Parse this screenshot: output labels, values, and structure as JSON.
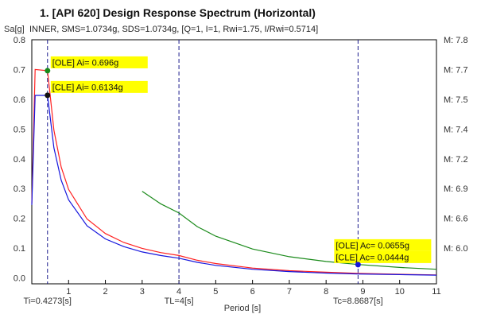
{
  "chart_data": {
    "type": "line",
    "title": "1. [API 620] Design Response Spectrum (Horizontal)",
    "subtitle": "INNER, SMS=1.0734g, SDS=1.0734g, [Q=1, I=1, Rwi=1.75, I/Rwi=0.5714]",
    "ylabel": "Sa[g]",
    "xlabel": "Period [s]",
    "xlim": [
      0.0,
      11.0
    ],
    "ylim": [
      -0.02,
      0.8
    ],
    "x_ticks": [
      1,
      2,
      3,
      4,
      5,
      6,
      7,
      8,
      9,
      10,
      11
    ],
    "y_ticks": [
      0.0,
      0.1,
      0.2,
      0.3,
      0.4,
      0.5,
      0.6,
      0.7,
      0.8
    ],
    "right_axis_labels": [
      {
        "y": 0.8,
        "label": "M: 7.8"
      },
      {
        "y": 0.7,
        "label": "M: 7.7"
      },
      {
        "y": 0.6,
        "label": "M: 7.5"
      },
      {
        "y": 0.5,
        "label": "M: 7.4"
      },
      {
        "y": 0.4,
        "label": "M: 7.2"
      },
      {
        "y": 0.3,
        "label": "M: 6.9"
      },
      {
        "y": 0.2,
        "label": "M: 6.6"
      },
      {
        "y": 0.1,
        "label": "M: 6.0"
      }
    ],
    "series": [
      {
        "color": "#ff2020",
        "points": [
          [
            0.0,
            0.25
          ],
          [
            0.09,
            0.7
          ],
          [
            0.4273,
            0.696
          ],
          [
            0.6,
            0.496
          ],
          [
            0.8,
            0.372
          ],
          [
            1.0,
            0.297
          ],
          [
            1.5,
            0.198
          ],
          [
            2.0,
            0.149
          ],
          [
            2.5,
            0.119
          ],
          [
            3.0,
            0.099
          ],
          [
            3.5,
            0.085
          ],
          [
            4.0,
            0.075
          ],
          [
            4.5,
            0.059
          ],
          [
            5.0,
            0.048
          ],
          [
            6.0,
            0.033
          ],
          [
            7.0,
            0.024
          ],
          [
            8.0,
            0.019
          ],
          [
            8.87,
            0.015
          ],
          [
            10.0,
            0.012
          ],
          [
            11.0,
            0.01
          ]
        ]
      },
      {
        "color": "#1515dd",
        "points": [
          [
            0.0,
            0.245
          ],
          [
            0.09,
            0.613
          ],
          [
            0.4273,
            0.613
          ],
          [
            0.6,
            0.437
          ],
          [
            0.8,
            0.328
          ],
          [
            1.0,
            0.262
          ],
          [
            1.5,
            0.175
          ],
          [
            2.0,
            0.131
          ],
          [
            2.5,
            0.105
          ],
          [
            3.0,
            0.087
          ],
          [
            3.5,
            0.075
          ],
          [
            4.0,
            0.066
          ],
          [
            4.5,
            0.052
          ],
          [
            5.0,
            0.042
          ],
          [
            6.0,
            0.029
          ],
          [
            7.0,
            0.021
          ],
          [
            8.0,
            0.016
          ],
          [
            8.87,
            0.013
          ],
          [
            10.0,
            0.011
          ],
          [
            11.0,
            0.009
          ]
        ]
      },
      {
        "color": "#1a8a1a",
        "points": [
          [
            3.0,
            0.291
          ],
          [
            3.5,
            0.249
          ],
          [
            4.0,
            0.218
          ],
          [
            4.5,
            0.172
          ],
          [
            5.0,
            0.14
          ],
          [
            6.0,
            0.097
          ],
          [
            7.0,
            0.071
          ],
          [
            8.0,
            0.055
          ],
          [
            8.87,
            0.045
          ],
          [
            10.0,
            0.035
          ],
          [
            11.0,
            0.029
          ]
        ]
      }
    ],
    "vlines": [
      {
        "x": 0.4273,
        "label": "Ti=0.4273[s]"
      },
      {
        "x": 4.0,
        "label": "TL=4[s]"
      },
      {
        "x": 8.8687,
        "label": "Tc=8.8687[s]"
      }
    ],
    "markers": [
      {
        "x": 0.4273,
        "y": 0.696,
        "color": "#1a8a1a"
      },
      {
        "x": 0.4273,
        "y": 0.6134,
        "color": "#111111"
      },
      {
        "x": 8.8687,
        "y": 0.0444,
        "color": "#1515dd"
      }
    ],
    "annotations": [
      {
        "text": "[OLE] Ai= 0.696g",
        "x": 0.4273,
        "y": 0.696,
        "anchor": "top"
      },
      {
        "text": "[CLE] Ai= 0.6134g",
        "x": 0.4273,
        "y": 0.6134,
        "anchor": "top"
      },
      {
        "text": "[OLE] Ac= 0.0655g",
        "x": 8.8687,
        "y": 0.0444,
        "anchor": "top-2"
      },
      {
        "text": "[CLE] Ac= 0.0444g",
        "x": 8.8687,
        "y": 0.0444,
        "anchor": "top-1"
      }
    ],
    "colors": {
      "highlight": "#ffff00",
      "vline": "#1a1a8c",
      "frame": "#000000"
    }
  }
}
